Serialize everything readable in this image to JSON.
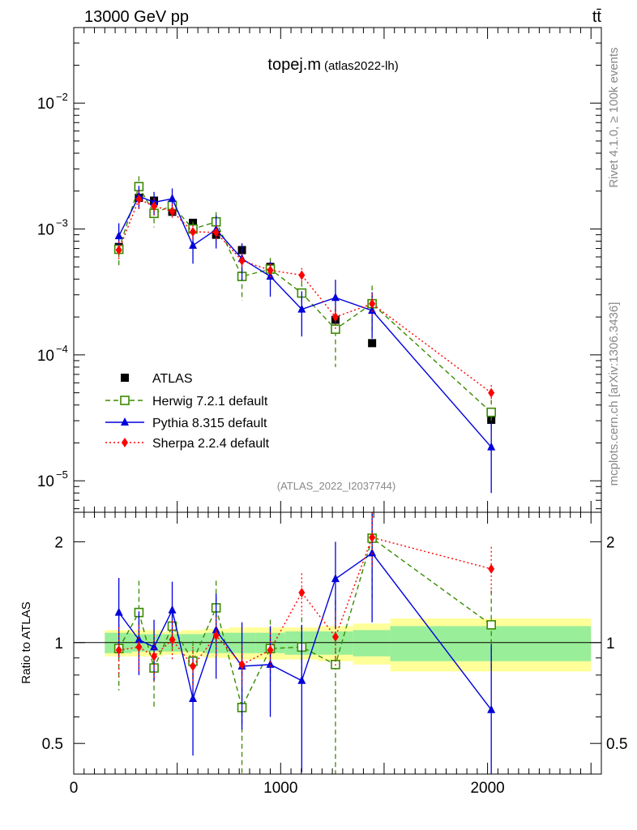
{
  "header": {
    "energy_label": "13000 GeV pp",
    "process_label": "tt̄"
  },
  "side_labels": {
    "rivet": "Rivet 4.1.0, ≥ 100k events",
    "source": "mcplots.cern.ch [arXiv:1306.3436]"
  },
  "chart_data": [
    {
      "type": "scatter",
      "title": "topej.m",
      "title_suffix": "(atlas2022-lh)",
      "watermark": "(ATLAS_2022_I2037744)",
      "yscale": "log",
      "ylim": [
        6e-06,
        0.04
      ],
      "xlim": [
        0,
        2550
      ],
      "ytick_labels": [
        {
          "value": 0.01,
          "base": "10",
          "exp": "−2"
        },
        {
          "value": 0.001,
          "base": "10",
          "exp": "−3"
        },
        {
          "value": 0.0001,
          "base": "10",
          "exp": "−4"
        },
        {
          "value": 1e-05,
          "base": "10",
          "exp": "−5"
        }
      ],
      "legend_position": "bottom-left",
      "x": [
        218,
        315,
        388,
        476,
        576,
        688,
        813,
        950,
        1102,
        1265,
        1442,
        2018
      ],
      "series": [
        {
          "name": "ATLAS",
          "color": "#000000",
          "marker": "square-filled",
          "line": "none",
          "values": [
            0.00072,
            0.00177,
            0.00168,
            0.00137,
            0.00112,
            0.0009,
            0.00068,
            0.0005,
            0.00031,
            0.00019,
            0.000124,
            3.05e-05
          ]
        },
        {
          "name": "Herwig 7.2.1 default",
          "color": "#3a8a00",
          "marker": "square-open",
          "line": "dashed",
          "values": [
            0.00069,
            0.00217,
            0.00133,
            0.00154,
            0.001,
            0.00114,
            0.00042,
            0.00048,
            0.00031,
            0.00016,
            0.000255,
            3.5e-05
          ],
          "err_lo": [
            0.00019,
            0.00045,
            0.0003,
            0.00022,
            0.00014,
            0.00022,
            0.00015,
            0.00011,
            7e-05,
            8e-05,
            0.0001,
            9e-06
          ],
          "err_hi": [
            0.00019,
            0.00045,
            0.0003,
            0.00022,
            0.00014,
            0.00022,
            0.00015,
            0.00011,
            7e-05,
            8e-05,
            0.0001,
            9e-06
          ]
        },
        {
          "name": "Pythia 8.315 default",
          "color": "#0000dd",
          "marker": "triangle",
          "line": "solid",
          "values": [
            0.00088,
            0.00182,
            0.00163,
            0.00174,
            0.00074,
            0.00099,
            0.00058,
            0.00042,
            0.00023,
            0.000285,
            0.000225,
            1.85e-05
          ],
          "err_lo": [
            0.00023,
            0.00038,
            0.00034,
            0.00036,
            0.00021,
            0.00029,
            0.00019,
            0.00013,
            9e-05,
            0.00011,
            9e-05,
            1.05e-05
          ],
          "err_hi": [
            0.00023,
            0.00038,
            0.00034,
            0.00036,
            0.00021,
            0.00029,
            0.00019,
            0.00013,
            9e-05,
            0.00011,
            9e-05,
            1.05e-05
          ]
        },
        {
          "name": "Sherpa 2.2.4 default",
          "color": "#ff0000",
          "marker": "diamond",
          "line": "dotted",
          "values": [
            0.00068,
            0.00172,
            0.00152,
            0.00138,
            0.00095,
            0.00094,
            0.00056,
            0.00047,
            0.00043,
            0.0002,
            0.000255,
            5e-05
          ],
          "err_lo": [
            0.00012,
            0.00028,
            0.00024,
            0.0002,
            0.00012,
            0.00013,
            8e-05,
            6e-05,
            6e-05,
            4e-05,
            5e-05,
            7.5e-06
          ],
          "err_hi": [
            0.00012,
            0.00028,
            0.00024,
            0.0002,
            0.00012,
            0.00013,
            8e-05,
            6e-05,
            6e-05,
            4e-05,
            5e-05,
            7.5e-06
          ]
        }
      ]
    },
    {
      "type": "scatter",
      "ylabel": "Ratio to ATLAS",
      "yscale": "log",
      "ylim": [
        0.4,
        2.5
      ],
      "ytick_labels": [
        {
          "value": 0.5,
          "text": "0.5"
        },
        {
          "value": 1,
          "text": "1"
        },
        {
          "value": 2,
          "text": "2"
        }
      ],
      "xtick_labels": [
        {
          "value": 0,
          "text": "0"
        },
        {
          "value": 1000,
          "text": "1000"
        },
        {
          "value": 2000,
          "text": "2000"
        }
      ],
      "bands": {
        "edges": [
          150,
          280,
          350,
          430,
          520,
          630,
          750,
          880,
          1020,
          1180,
          1350,
          1530,
          2500
        ],
        "inner": [
          0.07,
          0.06,
          0.06,
          0.06,
          0.06,
          0.07,
          0.07,
          0.07,
          0.08,
          0.08,
          0.09,
          0.12
        ],
        "outer": [
          0.09,
          0.09,
          0.09,
          0.08,
          0.09,
          0.1,
          0.11,
          0.11,
          0.11,
          0.12,
          0.14,
          0.18
        ],
        "inner_color": "#99ee99",
        "outer_color": "#ffff99"
      },
      "series": [
        {
          "name": "Herwig 7.2.1 default",
          "values": [
            0.96,
            1.23,
            0.84,
            1.12,
            0.88,
            1.27,
            0.64,
            0.96,
            0.97,
            0.86,
            2.05,
            1.13
          ],
          "err_lo": [
            0.24,
            0.3,
            0.2,
            0.17,
            0.13,
            0.26,
            0.28,
            0.21,
            0.22,
            0.48,
            0.7,
            0.3
          ],
          "err_hi": [
            0.24,
            0.3,
            0.2,
            0.17,
            0.13,
            0.26,
            0.28,
            0.21,
            0.22,
            0.48,
            0.7,
            0.3
          ]
        },
        {
          "name": "Pythia 8.315 default",
          "values": [
            1.23,
            1.02,
            0.97,
            1.25,
            0.68,
            1.09,
            0.85,
            0.86,
            0.77,
            1.55,
            1.85,
            0.63
          ],
          "err_lo": [
            0.33,
            0.22,
            0.2,
            0.27,
            0.22,
            0.31,
            0.3,
            0.26,
            0.36,
            0.45,
            0.7,
            0.36
          ],
          "err_hi": [
            0.33,
            0.22,
            0.2,
            0.27,
            0.22,
            0.31,
            0.3,
            0.26,
            0.36,
            0.45,
            0.7,
            0.36
          ]
        },
        {
          "name": "Sherpa 2.2.4 default",
          "values": [
            0.95,
            0.97,
            0.91,
            1.02,
            0.85,
            1.05,
            0.86,
            0.95,
            1.41,
            1.04,
            2.06,
            1.66
          ],
          "err_lo": [
            0.16,
            0.16,
            0.14,
            0.14,
            0.12,
            0.14,
            0.12,
            0.12,
            0.2,
            0.2,
            0.4,
            0.27
          ],
          "err_hi": [
            0.16,
            0.16,
            0.14,
            0.14,
            0.12,
            0.14,
            0.12,
            0.12,
            0.2,
            0.2,
            0.4,
            0.27
          ]
        }
      ]
    }
  ]
}
